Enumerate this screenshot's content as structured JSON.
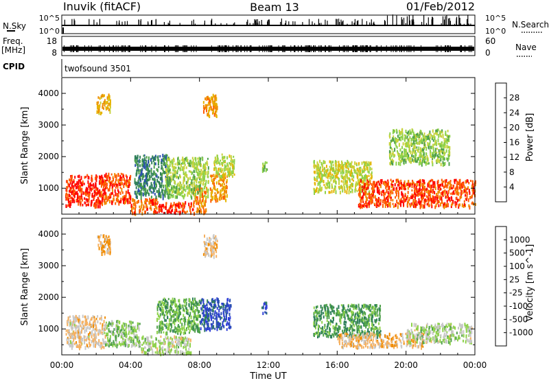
{
  "header": {
    "station": "Inuvik (fitACF)",
    "beam": "Beam 13",
    "date": "01/Feb/2012"
  },
  "strip_panels": {
    "nsky_label": "N.Sky",
    "nsky_ticks": [
      "10^5",
      "10^0"
    ],
    "nsearch_label": "N.Search",
    "nsearch_ticks": [
      "10^5",
      "10^0"
    ],
    "freq_label_line1": "Freq.",
    "freq_label_line2": "[MHz]",
    "freq_ticks": [
      "18",
      "8"
    ],
    "nave_label": "Nave",
    "nave_ticks": [
      "60",
      "0"
    ],
    "cpid_label": "CPID",
    "cpid_value": "twofsound 3501"
  },
  "colors": {
    "power_scale": [
      "#0000ff",
      "#2a4fb0",
      "#2f7f5a",
      "#4ea04a",
      "#8ed24a",
      "#c8d23c",
      "#e6b400",
      "#f08c00",
      "#ff5a00",
      "#ff0000"
    ],
    "velocity_scale": [
      "#ff0000",
      "#ff5a00",
      "#f08c00",
      "#f5b060",
      "#c8c8c8",
      "#8ed24a",
      "#4ea04a",
      "#2f7f5a",
      "#2a4fb0",
      "#3040d8"
    ]
  },
  "chart_data": [
    {
      "type": "heatmap",
      "name": "power",
      "xlabel": "",
      "ylabel": "Slant Range [km]",
      "xlim": [
        0,
        24
      ],
      "ylim": [
        180,
        4500
      ],
      "yticks": [
        1000,
        2000,
        3000,
        4000
      ],
      "colorbar": {
        "label": "Power [dB]",
        "ticks": [
          "28",
          "24",
          "20",
          "16",
          "12",
          "8",
          "4"
        ],
        "range": [
          0,
          30
        ]
      },
      "regions": [
        {
          "t0": 0.2,
          "t1": 2.2,
          "r0": 450,
          "r1": 1450,
          "value": 28
        },
        {
          "t0": 2.2,
          "t1": 4.0,
          "r0": 550,
          "r1": 1500,
          "value": 26
        },
        {
          "t0": 4.0,
          "t1": 5.5,
          "r0": 250,
          "r1": 700,
          "value": 25
        },
        {
          "t0": 5.5,
          "t1": 7.6,
          "r0": 250,
          "r1": 600,
          "value": 27
        },
        {
          "t0": 7.6,
          "t1": 8.4,
          "r0": 250,
          "r1": 1100,
          "value": 23
        },
        {
          "t0": 8.6,
          "t1": 9.6,
          "r0": 650,
          "r1": 1500,
          "value": 22
        },
        {
          "t0": 4.2,
          "t1": 6.2,
          "r0": 750,
          "r1": 2100,
          "value": 8
        },
        {
          "t0": 6.0,
          "t1": 8.5,
          "r0": 750,
          "r1": 2000,
          "value": 14
        },
        {
          "t0": 8.8,
          "t1": 10.0,
          "r0": 1400,
          "r1": 2100,
          "value": 16
        },
        {
          "t0": 11.6,
          "t1": 11.9,
          "r0": 1500,
          "r1": 1900,
          "value": 12
        },
        {
          "t0": 14.6,
          "t1": 18.0,
          "r0": 900,
          "r1": 1900,
          "value": 16
        },
        {
          "t0": 17.2,
          "t1": 24.0,
          "r0": 450,
          "r1": 1300,
          "value": 26
        },
        {
          "t0": 19.0,
          "t1": 22.5,
          "r0": 1800,
          "r1": 2900,
          "value": 14
        },
        {
          "t0": 2.0,
          "t1": 2.8,
          "r0": 3400,
          "r1": 4000,
          "value": 20
        },
        {
          "t0": 8.2,
          "t1": 9.0,
          "r0": 3300,
          "r1": 4000,
          "value": 22
        }
      ]
    },
    {
      "type": "heatmap",
      "name": "velocity",
      "xlabel": "Time UT",
      "ylabel": "Slant Range [km]",
      "xlim": [
        0,
        24
      ],
      "ylim": [
        180,
        4500
      ],
      "yticks": [
        1000,
        2000,
        3000,
        4000
      ],
      "xticks": [
        "00:00",
        "04:00",
        "08:00",
        "12:00",
        "16:00",
        "20:00",
        "00:00"
      ],
      "colorbar": {
        "label": "Velocity [m s^-1]",
        "ticks": [
          "1000",
          "500",
          "100",
          "25",
          "-25",
          "-100",
          "-500",
          "-1000"
        ],
        "range": [
          -1200,
          1200
        ]
      },
      "regions": [
        {
          "t0": 0.2,
          "t1": 2.5,
          "r0": 450,
          "r1": 1450,
          "value": -250
        },
        {
          "t0": 2.5,
          "t1": 4.5,
          "r0": 500,
          "r1": 1300,
          "value": 150
        },
        {
          "t0": 4.5,
          "t1": 7.5,
          "r0": 250,
          "r1": 800,
          "value": 0
        },
        {
          "t0": 5.5,
          "t1": 8.0,
          "r0": 900,
          "r1": 2000,
          "value": 300
        },
        {
          "t0": 8.0,
          "t1": 9.8,
          "r0": 1000,
          "r1": 2000,
          "value": 900
        },
        {
          "t0": 11.6,
          "t1": 11.9,
          "r0": 1500,
          "r1": 1900,
          "value": 900
        },
        {
          "t0": 14.6,
          "t1": 18.5,
          "r0": 800,
          "r1": 1800,
          "value": 400
        },
        {
          "t0": 16.0,
          "t1": 21.0,
          "r0": 450,
          "r1": 900,
          "value": -350
        },
        {
          "t0": 20.0,
          "t1": 23.8,
          "r0": 600,
          "r1": 1200,
          "value": 10
        },
        {
          "t0": 2.0,
          "t1": 2.8,
          "r0": 3400,
          "r1": 4000,
          "value": -400
        },
        {
          "t0": 8.2,
          "t1": 9.0,
          "r0": 3300,
          "r1": 4000,
          "value": -300
        }
      ]
    }
  ]
}
